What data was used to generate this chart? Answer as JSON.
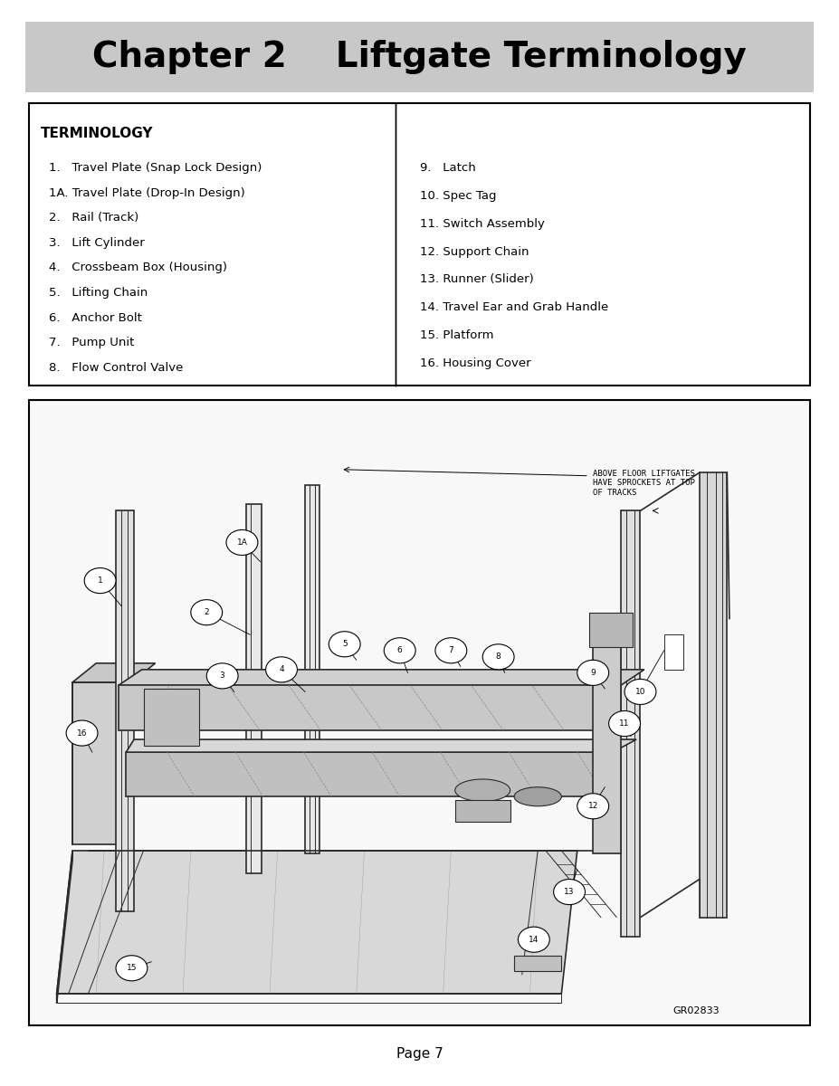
{
  "title": "Chapter 2    Liftgate Terminology",
  "title_bg": "#c8c8c8",
  "title_fontsize": 28,
  "title_bold": true,
  "page_label": "Page 7",
  "diagram_ref": "GR02833",
  "terminology_header": "TERMINOLOGY",
  "left_items": [
    "1.   Travel Plate (Snap Lock Design)",
    "1A. Travel Plate (Drop-In Design)",
    "2.   Rail (Track)",
    "3.   Lift Cylinder",
    "4.   Crossbeam Box (Housing)",
    "5.   Lifting Chain",
    "6.   Anchor Bolt",
    "7.   Pump Unit",
    "8.   Flow Control Valve"
  ],
  "right_items": [
    "9.   Latch",
    "10. Spec Tag",
    "11. Switch Assembly",
    "12. Support Chain",
    "13. Runner (Slider)",
    "14. Travel Ear and Grab Handle",
    "15. Platform",
    "16. Housing Cover"
  ],
  "callout_text": "ABOVE FLOOR LIFTGATES\nHAVE SPROCKETS AT TOP\nOF TRACKS",
  "bg_color": "#ffffff",
  "text_color": "#000000",
  "diagram_bg": "#ffffff"
}
